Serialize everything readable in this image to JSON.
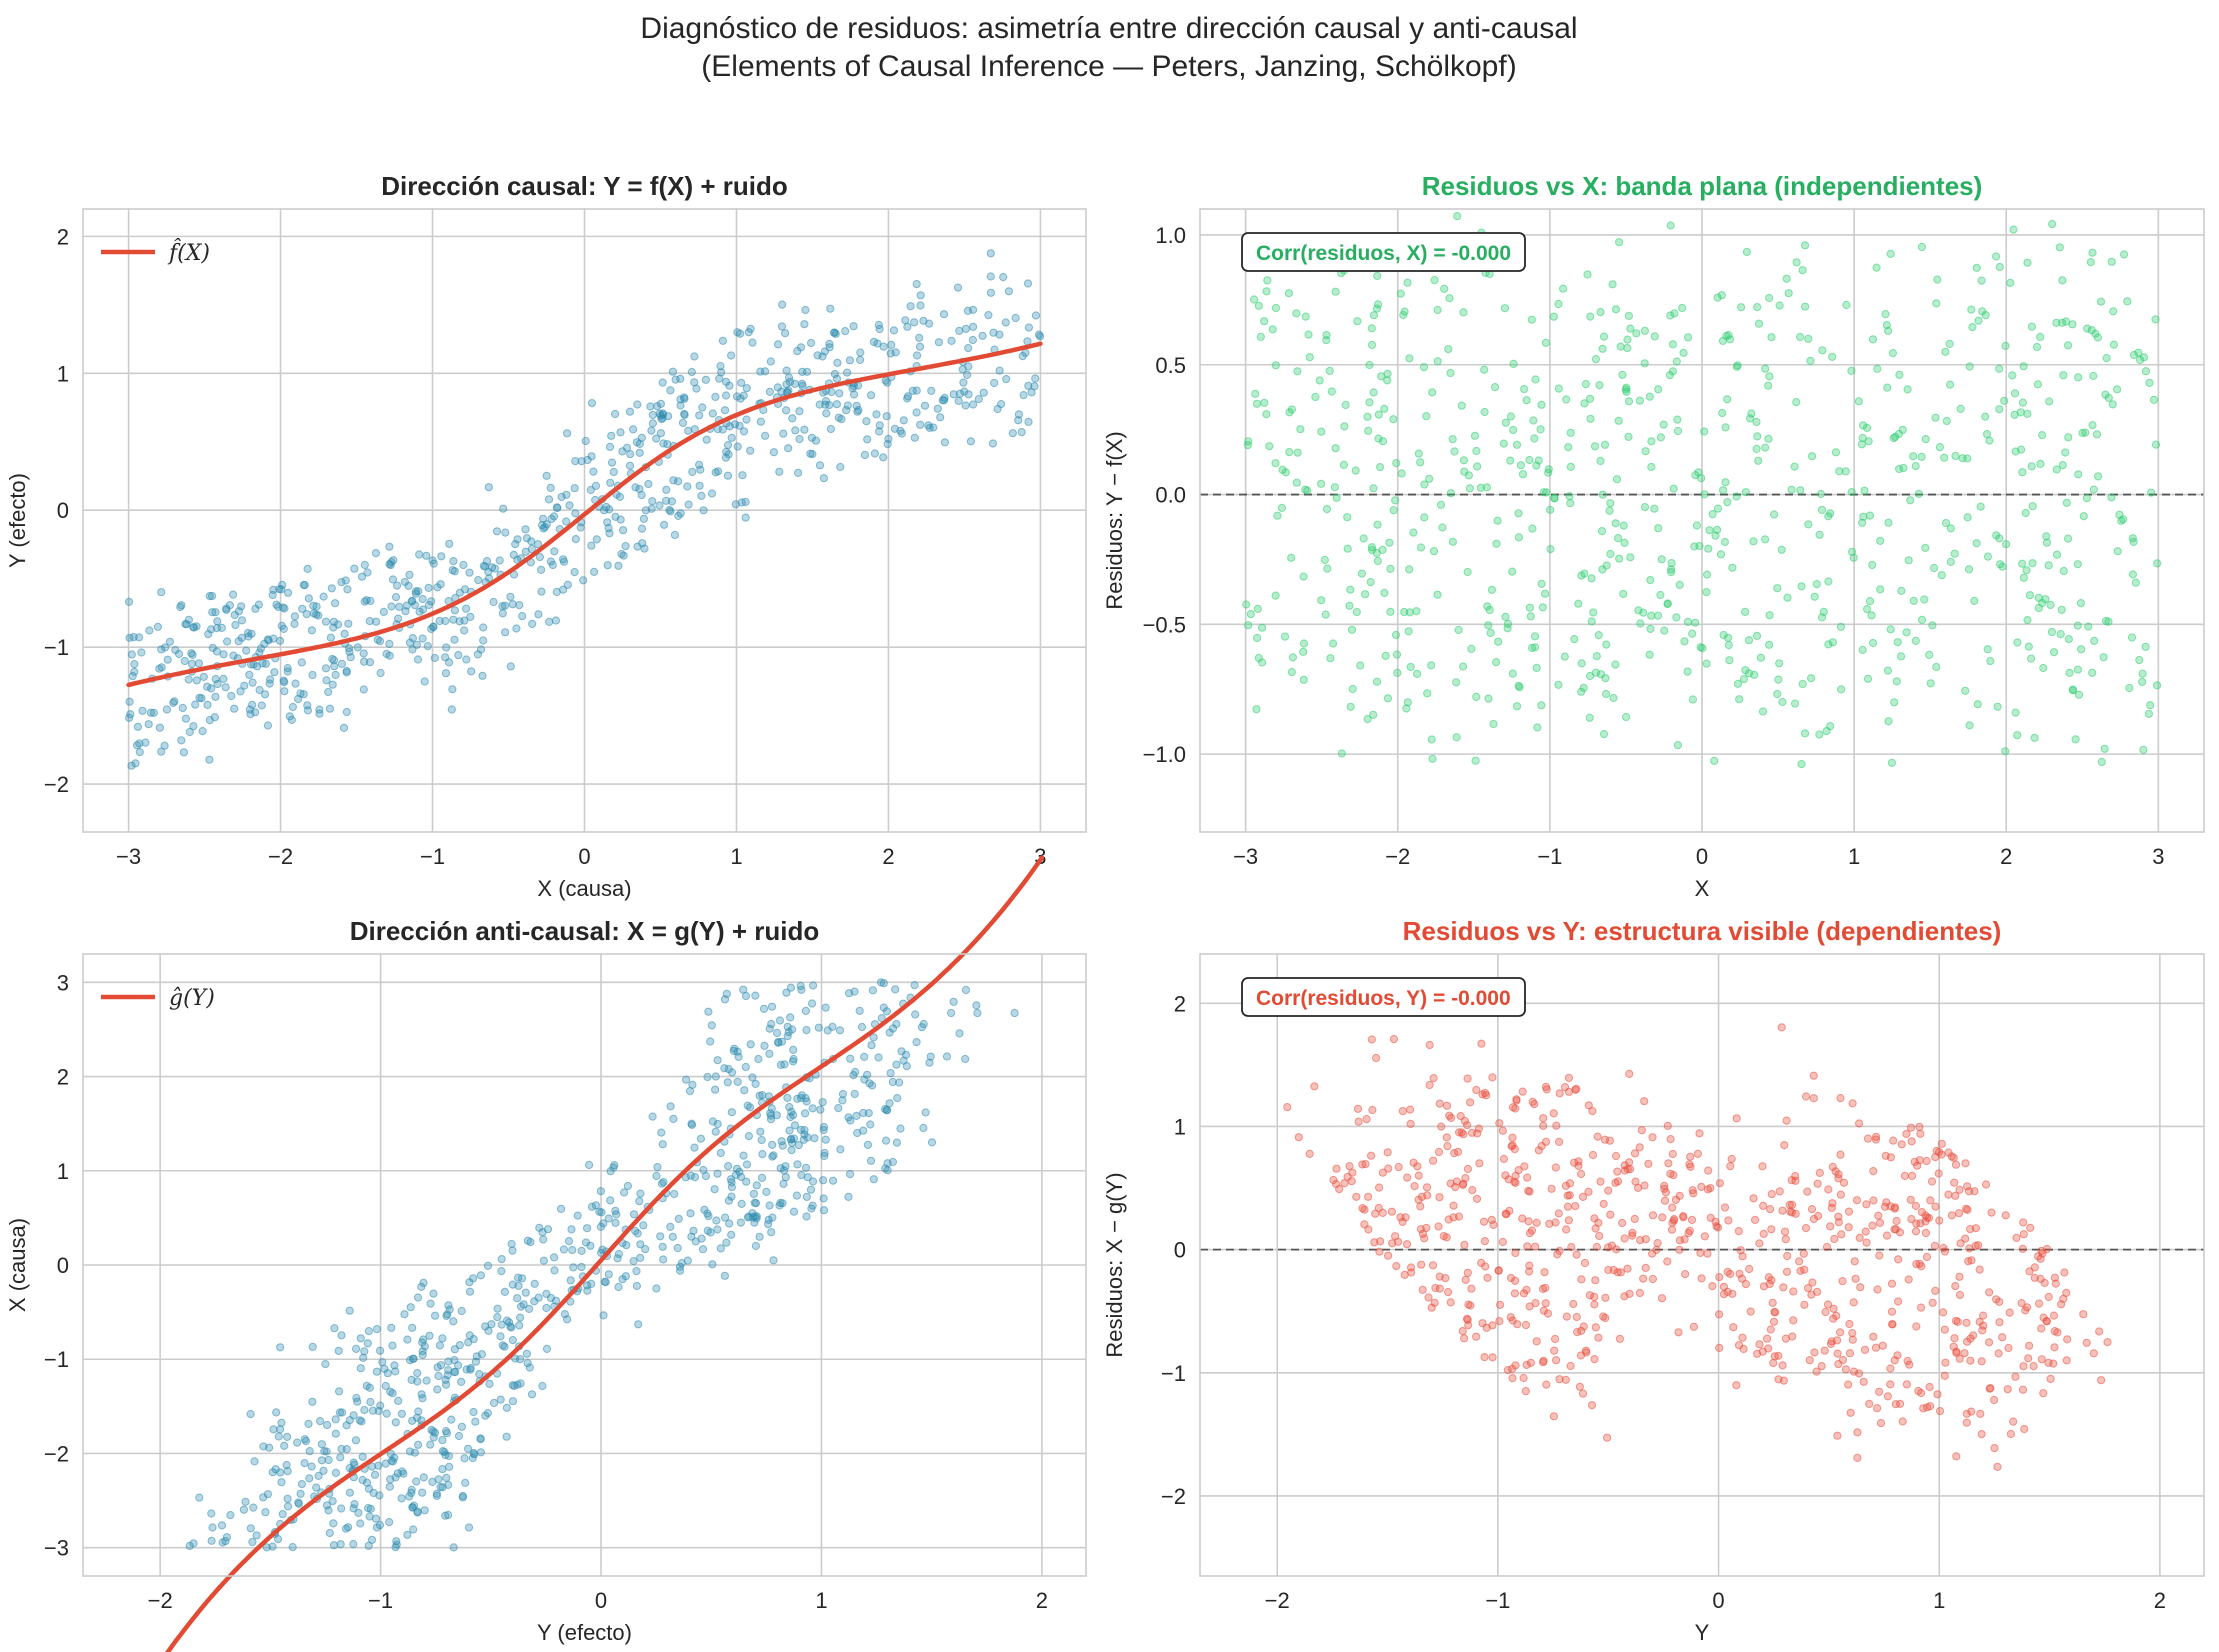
{
  "figure": {
    "title_line1": "Diagnóstico de residuos: asimetría entre dirección causal y anti-causal",
    "title_line2": "(Elements of Causal Inference — Peters, Janzing, Schölkopf)"
  },
  "chart_data": [
    {
      "type": "scatter",
      "title": "Dirección causal: Y = f(X) + ruido",
      "title_color": "#262626",
      "xlabel": "X (causa)",
      "ylabel": "Y (efecto)",
      "xlim": [
        -3.3,
        3.3
      ],
      "ylim": [
        -2.35,
        2.2
      ],
      "xticks": [
        -3,
        -2,
        -1,
        0,
        1,
        2,
        3
      ],
      "yticks": [
        -2,
        -1,
        0,
        1,
        2
      ],
      "point_color": "#2e8bb0",
      "series": [
        {
          "name": "datos",
          "kind": "scatter",
          "generator": {
            "model": "causal",
            "n": 800,
            "seed": 7
          }
        },
        {
          "name": "f̂(X)",
          "kind": "line",
          "color": "#e24a33",
          "legend": "f̂(X)"
        }
      ],
      "legend_position": "top-left",
      "grid": true
    },
    {
      "type": "scatter",
      "title": "Residuos vs X: banda plana (independientes)",
      "title_color": "#27ae60",
      "xlabel": "X",
      "ylabel": "Residuos: Y − f(X)",
      "xlim": [
        -3.3,
        3.3
      ],
      "ylim": [
        -1.3,
        1.1
      ],
      "xticks": [
        -3,
        -2,
        -1,
        0,
        1,
        2,
        3
      ],
      "yticks": [
        -1.0,
        -0.5,
        0.0,
        0.5,
        1.0
      ],
      "ytick_format": "1f",
      "point_color": "#2ecc71",
      "series": [
        {
          "name": "residuos",
          "kind": "scatter",
          "generator": {
            "model": "resid_x",
            "n": 800,
            "seed": 11
          }
        }
      ],
      "hline": 0,
      "annotation": "Corr(residuos, X) = -0.000",
      "annotation_color": "#27ae60",
      "grid": true
    },
    {
      "type": "scatter",
      "title": "Dirección anti-causal: X = g(Y) + ruido",
      "title_color": "#262626",
      "xlabel": "Y (efecto)",
      "ylabel": "X (causa)",
      "xlim": [
        -2.35,
        2.2
      ],
      "ylim": [
        -3.3,
        3.3
      ],
      "xticks": [
        -2,
        -1,
        0,
        1,
        2
      ],
      "yticks": [
        -3,
        -2,
        -1,
        0,
        1,
        2,
        3
      ],
      "point_color": "#2e8bb0",
      "series": [
        {
          "name": "datos",
          "kind": "scatter",
          "generator": {
            "model": "anticausal",
            "n": 800,
            "seed": 7
          }
        },
        {
          "name": "ĝ(Y)",
          "kind": "line",
          "color": "#e24a33",
          "legend": "ĝ(Y)"
        }
      ],
      "legend_position": "top-left",
      "grid": true
    },
    {
      "type": "scatter",
      "title": "Residuos vs Y: estructura visible (dependientes)",
      "title_color": "#e24a33",
      "xlabel": "Y",
      "ylabel": "Residuos: X − g(Y)",
      "xlim": [
        -2.35,
        2.2
      ],
      "ylim": [
        -2.65,
        2.4
      ],
      "xticks": [
        -2,
        -1,
        0,
        1,
        2
      ],
      "yticks": [
        -2,
        -1,
        0,
        1,
        2
      ],
      "point_color": "#e74c3c",
      "series": [
        {
          "name": "residuos",
          "kind": "scatter",
          "generator": {
            "model": "resid_y",
            "n": 800,
            "seed": 23
          }
        }
      ],
      "hline": 0,
      "annotation": "Corr(residuos, Y) = -0.000",
      "annotation_color": "#e24a33",
      "grid": true
    }
  ]
}
